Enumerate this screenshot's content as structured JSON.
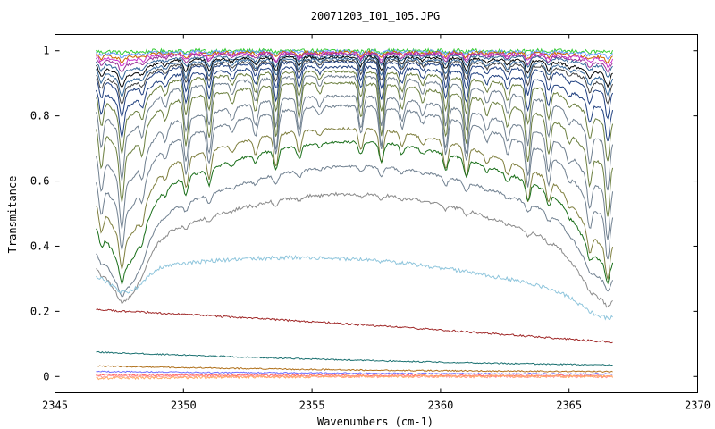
{
  "chart_data": {
    "type": "line",
    "title": "20071203_I01_105.JPG",
    "xlabel": "Wavenumbers (cm-1)",
    "ylabel": "Transmitance",
    "xlim": [
      2345,
      2370
    ],
    "ylim": [
      -0.05,
      1.05
    ],
    "x_ticks": [
      2345,
      2350,
      2355,
      2360,
      2365,
      2370
    ],
    "x_tick_labels": [
      "2345",
      "2350",
      "2355",
      "2360",
      "2365",
      "2370"
    ],
    "y_ticks": [
      0,
      0.2,
      0.4,
      0.6,
      0.8,
      1
    ],
    "y_tick_labels": [
      "0",
      "0.2",
      "0.4",
      "0.6",
      "0.8",
      "1"
    ],
    "x_range": [
      2346.6,
      2366.7
    ],
    "grid": false,
    "legend": "none",
    "absorption_lines_cm1": [
      2346.8,
      2347.6,
      2348.4,
      2349.3,
      2350.1,
      2351.0,
      2351.9,
      2352.8,
      2353.6,
      2354.5,
      2355.3,
      2356.9,
      2357.7,
      2358.5,
      2359.3,
      2360.2,
      2361.0,
      2361.8,
      2362.6,
      2363.4,
      2364.2,
      2365.0,
      2365.8,
      2366.5
    ],
    "series": [
      {
        "color": "#33cc33",
        "start": 1.0,
        "mid": 1.0,
        "end": 1.0,
        "depth": 0.005,
        "dips": 0.005,
        "noise": 0.006
      },
      {
        "color": "#6699ff",
        "start": 0.995,
        "mid": 0.998,
        "end": 0.995,
        "depth": 0.01,
        "dips": 0.01,
        "noise": 0.005
      },
      {
        "color": "#cc6600",
        "start": 0.99,
        "mid": 0.995,
        "end": 0.99,
        "depth": 0.015,
        "dips": 0.015,
        "noise": 0.005
      },
      {
        "color": "#cc33cc",
        "start": 0.985,
        "mid": 0.992,
        "end": 0.985,
        "depth": 0.02,
        "dips": 0.02,
        "noise": 0.005
      },
      {
        "color": "#993399",
        "start": 0.98,
        "mid": 0.99,
        "end": 0.98,
        "depth": 0.03,
        "dips": 0.025,
        "noise": 0.004
      },
      {
        "color": "#336699",
        "start": 0.97,
        "mid": 0.985,
        "end": 0.975,
        "depth": 0.04,
        "dips": 0.03,
        "noise": 0.004
      },
      {
        "color": "#000000",
        "start": 0.96,
        "mid": 0.98,
        "end": 0.96,
        "depth": 0.05,
        "dips": 0.04,
        "noise": 0.004
      },
      {
        "color": "#336699",
        "start": 0.95,
        "mid": 0.975,
        "end": 0.95,
        "depth": 0.06,
        "dips": 0.05,
        "noise": 0.004
      },
      {
        "color": "#444444",
        "start": 0.94,
        "mid": 0.97,
        "end": 0.94,
        "depth": 0.07,
        "dips": 0.06,
        "noise": 0.004
      },
      {
        "color": "#1f3f7f",
        "start": 0.93,
        "mid": 0.965,
        "end": 0.92,
        "depth": 0.08,
        "dips": 0.08,
        "noise": 0.004
      },
      {
        "color": "#1f3f7f",
        "start": 0.9,
        "mid": 0.95,
        "end": 0.88,
        "depth": 0.1,
        "dips": 0.1,
        "noise": 0.004
      },
      {
        "color": "#6b7f3f",
        "start": 0.88,
        "mid": 0.935,
        "end": 0.85,
        "depth": 0.12,
        "dips": 0.12,
        "noise": 0.004
      },
      {
        "color": "#708090",
        "start": 0.84,
        "mid": 0.92,
        "end": 0.8,
        "depth": 0.14,
        "dips": 0.15,
        "noise": 0.004
      },
      {
        "color": "#6b7f3f",
        "start": 0.79,
        "mid": 0.9,
        "end": 0.74,
        "depth": 0.16,
        "dips": 0.16,
        "noise": 0.004
      },
      {
        "color": "#708090",
        "start": 0.71,
        "mid": 0.86,
        "end": 0.67,
        "depth": 0.18,
        "dips": 0.15,
        "noise": 0.004
      },
      {
        "color": "#708090",
        "start": 0.63,
        "mid": 0.83,
        "end": 0.6,
        "depth": 0.2,
        "dips": 0.13,
        "noise": 0.004
      },
      {
        "color": "#7f7f3f",
        "start": 0.56,
        "mid": 0.76,
        "end": 0.52,
        "depth": 0.22,
        "dips": 0.1,
        "noise": 0.004
      },
      {
        "color": "#1a6f1a",
        "start": 0.49,
        "mid": 0.72,
        "end": 0.48,
        "depth": 0.24,
        "dips": 0.06,
        "noise": 0.004
      },
      {
        "color": "#708090",
        "start": 0.41,
        "mid": 0.645,
        "end": 0.42,
        "depth": 0.23,
        "dips": 0.03,
        "noise": 0.004
      },
      {
        "color": "#8a8a8a",
        "start": 0.36,
        "mid": 0.56,
        "end": 0.34,
        "depth": 0.2,
        "dips": 0.015,
        "noise": 0.005
      },
      {
        "color": "#8ec5dc",
        "start": 0.32,
        "mid": 0.36,
        "end": 0.23,
        "depth": 0.09,
        "dips": 0.0,
        "noise": 0.006
      },
      {
        "color": "#a02828",
        "start": 0.205,
        "mid": 0.16,
        "end": 0.105,
        "depth": 0.0,
        "dips": 0.0,
        "noise": 0.003
      },
      {
        "color": "#1a7070",
        "start": 0.075,
        "mid": 0.05,
        "end": 0.035,
        "depth": 0.0,
        "dips": 0.0,
        "noise": 0.002
      },
      {
        "color": "#b0701a",
        "start": 0.032,
        "mid": 0.02,
        "end": 0.015,
        "depth": 0.0,
        "dips": 0.0,
        "noise": 0.002
      },
      {
        "color": "#7070ff",
        "start": 0.015,
        "mid": 0.01,
        "end": 0.008,
        "depth": 0.0,
        "dips": 0.0,
        "noise": 0.002
      },
      {
        "color": "#ff6666",
        "start": 0.005,
        "mid": 0.003,
        "end": 0.002,
        "depth": 0.0,
        "dips": 0.0,
        "noise": 0.003
      },
      {
        "color": "#ff9999",
        "start": 0.0,
        "mid": 0.0,
        "end": 0.0,
        "depth": 0.0,
        "dips": 0.0,
        "noise": 0.004
      },
      {
        "color": "#ffaa66",
        "start": -0.005,
        "mid": 0.0,
        "end": 0.0,
        "depth": 0.0,
        "dips": 0.0,
        "noise": 0.004
      }
    ]
  }
}
